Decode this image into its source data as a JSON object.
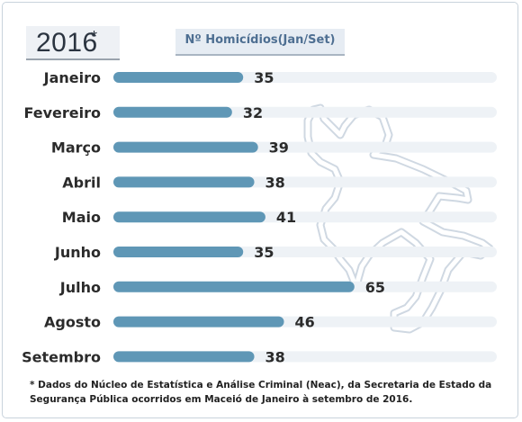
{
  "year_label": "2016",
  "year_mark": "*",
  "header": "Nº Homicídios(Jan/Set)",
  "footnote": "* Dados do Núcleo de Estatística e Análise Criminal (Neac), da Secretaria de Estado da Segurança Pública ocorridos em Maceió de Janeiro à setembro de 2016.",
  "colors": {
    "bar": "#5f97b6",
    "track": "#eef2f6",
    "text": "#2b2b2b",
    "outline": "#cfd8e2"
  },
  "chart_data": {
    "type": "bar",
    "orientation": "horizontal",
    "categories": [
      "Janeiro",
      "Fevereiro",
      "Março",
      "Abril",
      "Maio",
      "Junho",
      "Julho",
      "Agosto",
      "Setembro"
    ],
    "values": [
      35,
      32,
      39,
      38,
      41,
      35,
      65,
      46,
      38
    ],
    "title": "",
    "xlabel": "",
    "ylabel": "",
    "xlim": [
      0,
      100
    ],
    "grid": false
  }
}
